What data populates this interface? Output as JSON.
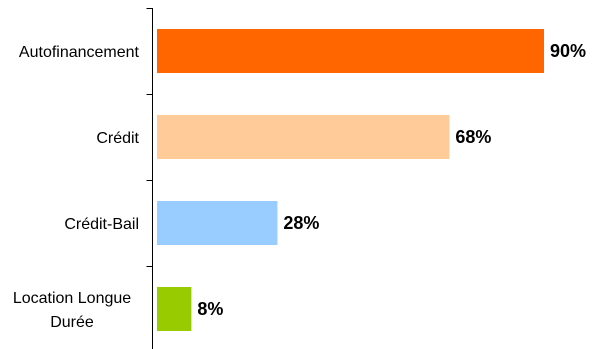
{
  "chart_data": {
    "type": "bar",
    "orientation": "horizontal",
    "categories": [
      [
        "Autofinancement"
      ],
      [
        "Crédit"
      ],
      [
        "Crédit-Bail"
      ],
      [
        "Location Longue",
        "Durée"
      ]
    ],
    "values": [
      90,
      68,
      28,
      8
    ],
    "value_labels": [
      "90%",
      "68%",
      "28%",
      "8%"
    ],
    "colors": [
      "#ff6600",
      "#ffcc99",
      "#99ccff",
      "#99cc00"
    ],
    "xlim": [
      0,
      90
    ],
    "grid": false,
    "legend": "none"
  }
}
